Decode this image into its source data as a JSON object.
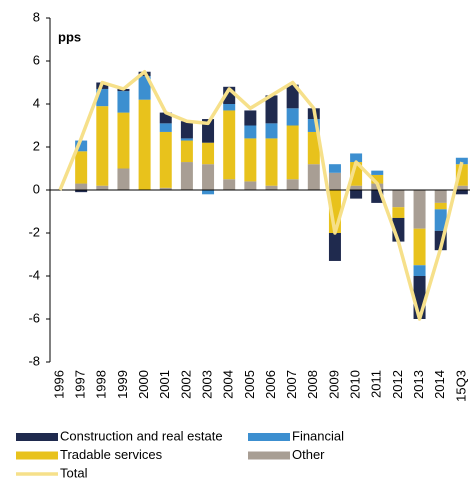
{
  "chart_data": {
    "type": "bar",
    "stacked": true,
    "y_label": "pps",
    "categories": [
      "1996",
      "1997",
      "1998",
      "1999",
      "2000",
      "2001",
      "2002",
      "2003",
      "2004",
      "2005",
      "2006",
      "2007",
      "2008",
      "2009",
      "2010",
      "2011",
      "2012",
      "2013",
      "2014",
      "15Q3"
    ],
    "series": [
      {
        "name": "Construction and real estate",
        "color": "#1f2a4e",
        "values": [
          0,
          -0.1,
          0.3,
          0.1,
          0.2,
          0.5,
          0.8,
          1.1,
          0.8,
          0.7,
          1.3,
          1.1,
          0.5,
          -1.3,
          -0.4,
          -0.6,
          -1.1,
          -2.0,
          -0.9,
          -0.2
        ]
      },
      {
        "name": "Financial",
        "color": "#3c8fd0",
        "values": [
          0,
          0.5,
          0.8,
          1.0,
          1.1,
          0.4,
          0.1,
          -0.2,
          0.3,
          0.6,
          0.7,
          0.8,
          0.6,
          0.4,
          0.4,
          0.2,
          0,
          -0.5,
          -1.0,
          0.3
        ]
      },
      {
        "name": "Tradable services",
        "color": "#e8c21c",
        "values": [
          0,
          1.5,
          3.7,
          2.6,
          4.2,
          2.6,
          1.0,
          1.0,
          3.2,
          2.0,
          2.2,
          2.5,
          1.5,
          -2.0,
          1.1,
          0.4,
          -0.5,
          -1.7,
          -0.3,
          1.0
        ]
      },
      {
        "name": "Other",
        "color": "#a89e94",
        "values": [
          0,
          0.3,
          0.2,
          1.0,
          0,
          0.1,
          1.3,
          1.2,
          0.5,
          0.4,
          0.2,
          0.5,
          1.2,
          0.8,
          0.2,
          0.3,
          -0.8,
          -1.8,
          -0.6,
          0.2
        ]
      },
      {
        "name": "Total",
        "type": "line",
        "color": "#f6e08a",
        "values": [
          0,
          2.4,
          5.0,
          4.7,
          5.5,
          3.6,
          3.2,
          3.1,
          4.7,
          3.8,
          4.4,
          5.0,
          3.8,
          -2.0,
          1.3,
          0.3,
          -2.4,
          -6.0,
          -2.7,
          1.3
        ]
      }
    ],
    "ylim": [
      -8,
      8
    ],
    "yticks": [
      -8,
      -6,
      -4,
      -2,
      0,
      2,
      4,
      6,
      8
    ],
    "legend": "bottom"
  }
}
